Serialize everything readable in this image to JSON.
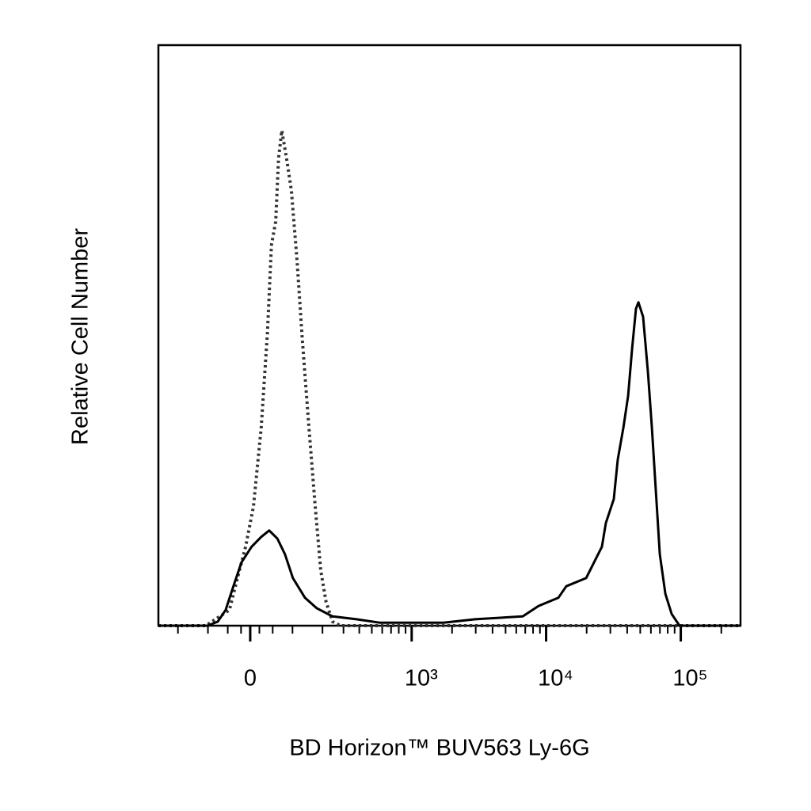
{
  "chart_data": {
    "type": "line",
    "xlabel": "BD Horizon™ BUV563 Ly-6G",
    "ylabel": "Relative Cell Number",
    "xscale": "biexponential",
    "xlim": [
      -292,
      277700
    ],
    "ylim": [
      0,
      100
    ],
    "xticks": [
      0,
      {
        "value": 1000,
        "label": "10³"
      },
      {
        "value": 10000,
        "label": "10⁴"
      },
      {
        "value": 100000,
        "label": "10⁵"
      }
    ],
    "xminorticks": [
      -200,
      -100,
      -50,
      -20,
      20,
      50,
      100,
      200,
      300,
      400,
      500,
      600,
      700,
      800,
      900,
      2000,
      3000,
      4000,
      5000,
      6000,
      7000,
      8000,
      9000,
      20000,
      30000,
      40000,
      50000,
      60000,
      70000,
      80000,
      90000,
      200000
    ],
    "series": [
      {
        "color": "#333333",
        "linestyle": "dotted",
        "x": [
          -292,
          -106,
          -46,
          -28,
          -10,
          7,
          24,
          38,
          47,
          57,
          64,
          72,
          84,
          97,
          113,
          129,
          150,
          172,
          193,
          215,
          244,
          284,
          277700
        ],
        "values": [
          0,
          0,
          2.7,
          8.2,
          13.6,
          20.5,
          34.1,
          50.5,
          65.5,
          69.6,
          80.5,
          85.3,
          80.5,
          75,
          62.8,
          49.1,
          34.1,
          20.5,
          9.5,
          4.1,
          0.7,
          0,
          0
        ]
      },
      {
        "color": "#000000",
        "linestyle": "solid",
        "x": [
          -292,
          -101,
          -74,
          -55,
          -37,
          -19,
          3,
          24,
          42,
          61,
          80,
          101,
          137,
          178,
          244,
          380,
          579,
          1002,
          1728,
          2973,
          6700,
          8788,
          12330,
          14110,
          19820,
          25980,
          27800,
          31830,
          34060,
          37460,
          40630,
          43480,
          46510,
          48450,
          52530,
          57020,
          60990,
          65280,
          69850,
          76830,
          85600,
          97920,
          277700
        ],
        "values": [
          0,
          0,
          0.7,
          2.7,
          6.8,
          10.9,
          13.6,
          15.3,
          16.4,
          15,
          12.3,
          8.2,
          4.8,
          3,
          1.6,
          1.1,
          0.5,
          0.5,
          0.5,
          1.1,
          1.6,
          3.4,
          4.8,
          6.8,
          8.2,
          13.6,
          17.7,
          21.8,
          28.6,
          34.1,
          39.6,
          47.7,
          54.6,
          55.7,
          53.2,
          43.7,
          34.1,
          23.2,
          12.3,
          5.5,
          2,
          0,
          0
        ]
      }
    ]
  }
}
